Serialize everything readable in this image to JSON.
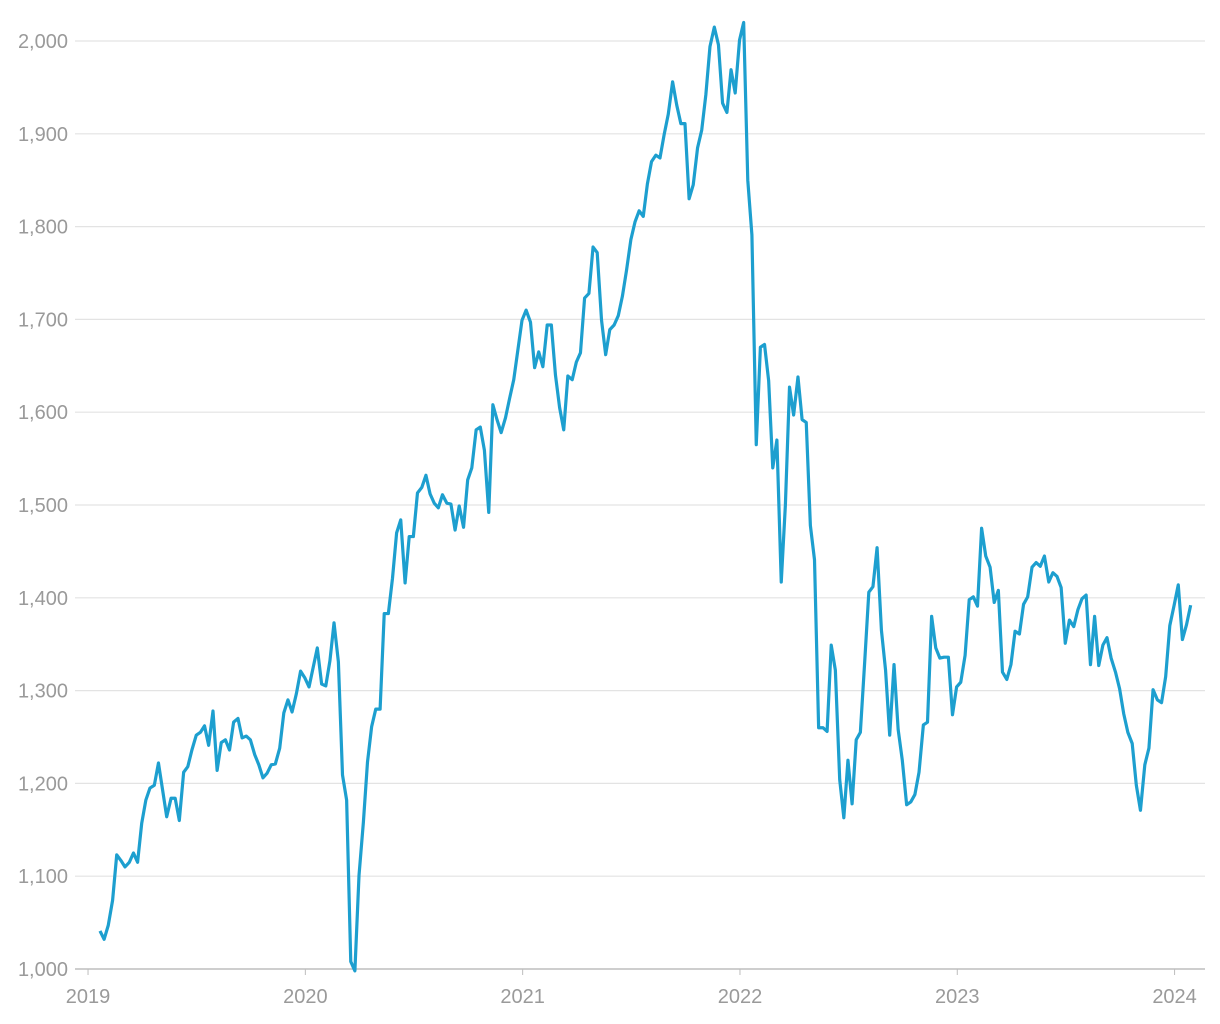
{
  "chart_data": {
    "type": "line",
    "color": "#1d9fcf",
    "grid": true,
    "xlim": [
      2018.94,
      2024.14
    ],
    "xticks": [
      2019,
      2020,
      2021,
      2022,
      2023,
      2024
    ],
    "ylim": [
      1000,
      2000
    ],
    "yticks": [
      {
        "value": 1000,
        "label": "1,000"
      },
      {
        "value": 1100,
        "label": "1,100"
      },
      {
        "value": 1200,
        "label": "1,200"
      },
      {
        "value": 1300,
        "label": "1,300"
      },
      {
        "value": 1400,
        "label": "1,400"
      },
      {
        "value": 1500,
        "label": "1,500"
      },
      {
        "value": 1600,
        "label": "1,600"
      },
      {
        "value": 1700,
        "label": "1,700"
      },
      {
        "value": 1800,
        "label": "1,800"
      },
      {
        "value": 1900,
        "label": "1,900"
      },
      {
        "value": 2000,
        "label": "2,000"
      }
    ],
    "x": [
      2019.055,
      2019.074,
      2019.093,
      2019.113,
      2019.132,
      2019.151,
      2019.17,
      2019.19,
      2019.209,
      2019.228,
      2019.247,
      2019.266,
      2019.285,
      2019.305,
      2019.324,
      2019.343,
      2019.362,
      2019.382,
      2019.401,
      2019.42,
      2019.44,
      2019.459,
      2019.478,
      2019.498,
      2019.517,
      2019.536,
      2019.555,
      2019.575,
      2019.594,
      2019.613,
      2019.632,
      2019.651,
      2019.67,
      2019.69,
      2019.709,
      2019.728,
      2019.747,
      2019.767,
      2019.786,
      2019.805,
      2019.824,
      2019.843,
      2019.862,
      2019.882,
      2019.901,
      2019.92,
      2019.939,
      2019.959,
      2019.978,
      2019.997,
      2020.017,
      2020.036,
      2020.055,
      2020.075,
      2020.094,
      2020.113,
      2020.132,
      2020.152,
      2020.171,
      2020.19,
      2020.209,
      2020.228,
      2020.247,
      2020.267,
      2020.286,
      2020.305,
      2020.324,
      2020.344,
      2020.363,
      2020.382,
      2020.401,
      2020.42,
      2020.439,
      2020.459,
      2020.478,
      2020.497,
      2020.516,
      2020.536,
      2020.555,
      2020.574,
      2020.593,
      2020.612,
      2020.631,
      2020.651,
      2020.67,
      2020.689,
      2020.708,
      2020.728,
      2020.747,
      2020.766,
      2020.786,
      2020.805,
      2020.824,
      2020.844,
      2020.863,
      2020.882,
      2020.901,
      2020.921,
      2020.94,
      2020.959,
      2020.978,
      2020.997,
      2021.016,
      2021.036,
      2021.055,
      2021.074,
      2021.093,
      2021.113,
      2021.132,
      2021.151,
      2021.17,
      2021.189,
      2021.208,
      2021.228,
      2021.247,
      2021.266,
      2021.285,
      2021.305,
      2021.324,
      2021.343,
      2021.363,
      2021.382,
      2021.401,
      2021.421,
      2021.44,
      2021.459,
      2021.478,
      2021.498,
      2021.517,
      2021.536,
      2021.555,
      2021.574,
      2021.593,
      2021.613,
      2021.632,
      2021.651,
      2021.67,
      2021.69,
      2021.709,
      2021.728,
      2021.747,
      2021.766,
      2021.785,
      2021.805,
      2021.824,
      2021.843,
      2021.862,
      2021.882,
      2021.901,
      2021.92,
      2021.94,
      2021.959,
      2021.978,
      2021.998,
      2022.017,
      2022.036,
      2022.055,
      2022.075,
      2022.094,
      2022.113,
      2022.132,
      2022.151,
      2022.17,
      2022.19,
      2022.209,
      2022.228,
      2022.247,
      2022.267,
      2022.286,
      2022.305,
      2022.324,
      2022.343,
      2022.362,
      2022.382,
      2022.401,
      2022.42,
      2022.439,
      2022.459,
      2022.478,
      2022.497,
      2022.516,
      2022.535,
      2022.554,
      2022.574,
      2022.593,
      2022.612,
      2022.631,
      2022.651,
      2022.67,
      2022.689,
      2022.709,
      2022.728,
      2022.747,
      2022.767,
      2022.786,
      2022.805,
      2022.824,
      2022.844,
      2022.863,
      2022.882,
      2022.901,
      2022.92,
      2022.939,
      2022.959,
      2022.978,
      2022.997,
      2023.016,
      2023.036,
      2023.055,
      2023.074,
      2023.093,
      2023.112,
      2023.131,
      2023.151,
      2023.17,
      2023.189,
      2023.208,
      2023.228,
      2023.247,
      2023.266,
      2023.286,
      2023.305,
      2023.324,
      2023.344,
      2023.363,
      2023.382,
      2023.401,
      2023.421,
      2023.44,
      2023.459,
      2023.478,
      2023.497,
      2023.516,
      2023.536,
      2023.555,
      2023.574,
      2023.593,
      2023.613,
      2023.632,
      2023.651,
      2023.67,
      2023.689,
      2023.708,
      2023.728,
      2023.747,
      2023.766,
      2023.785,
      2023.805,
      2023.824,
      2023.843,
      2023.863,
      2023.882,
      2023.901,
      2023.921,
      2023.94,
      2023.959,
      2023.978,
      2023.998,
      2024.017,
      2024.036,
      2024.055,
      2024.074
    ],
    "values": [
      1041,
      1032,
      1047,
      1074,
      1123,
      1117,
      1110,
      1115,
      1125,
      1115,
      1157,
      1182,
      1195,
      1198,
      1222,
      1193,
      1164,
      1184,
      1184,
      1160,
      1212,
      1218,
      1236,
      1252,
      1255,
      1262,
      1241,
      1278,
      1214,
      1244,
      1247,
      1236,
      1266,
      1270,
      1249,
      1251,
      1247,
      1231,
      1220,
      1206,
      1211,
      1220,
      1221,
      1238,
      1276,
      1290,
      1277,
      1297,
      1321,
      1314,
      1304,
      1325,
      1346,
      1307,
      1305,
      1332,
      1373,
      1331,
      1209,
      1182,
      1008,
      998,
      1101,
      1158,
      1223,
      1261,
      1280,
      1280,
      1383,
      1383,
      1421,
      1470,
      1484,
      1416,
      1466,
      1466,
      1513,
      1519,
      1532,
      1512,
      1502,
      1497,
      1511,
      1502,
      1501,
      1473,
      1499,
      1476,
      1527,
      1540,
      1581,
      1584,
      1559,
      1492,
      1608,
      1592,
      1578,
      1594,
      1615,
      1635,
      1667,
      1699,
      1710,
      1697,
      1648,
      1665,
      1649,
      1694,
      1694,
      1640,
      1605,
      1581,
      1639,
      1635,
      1654,
      1664,
      1723,
      1728,
      1778,
      1772,
      1699,
      1662,
      1689,
      1694,
      1704,
      1725,
      1753,
      1786,
      1805,
      1817,
      1811,
      1846,
      1870,
      1877,
      1874,
      1899,
      1921,
      1956,
      1931,
      1911,
      1911,
      1830,
      1845,
      1885,
      1904,
      1942,
      1994,
      2015,
      1996,
      1933,
      1923,
      1969,
      1944,
      2001,
      2020,
      1850,
      1791,
      1565,
      1670,
      1673,
      1634,
      1540,
      1570,
      1417,
      1500,
      1627,
      1597,
      1638,
      1592,
      1589,
      1478,
      1441,
      1260,
      1260,
      1256,
      1349,
      1322,
      1204,
      1163,
      1225,
      1178,
      1247,
      1255,
      1331,
      1406,
      1412,
      1454,
      1365,
      1322,
      1252,
      1328,
      1258,
      1225,
      1177,
      1180,
      1188,
      1212,
      1263,
      1266,
      1380,
      1346,
      1335,
      1336,
      1336,
      1274,
      1304,
      1309,
      1338,
      1398,
      1401,
      1391,
      1475,
      1445,
      1433,
      1395,
      1408,
      1320,
      1312,
      1328,
      1364,
      1361,
      1393,
      1401,
      1433,
      1438,
      1434,
      1445,
      1417,
      1427,
      1423,
      1411,
      1351,
      1376,
      1369,
      1387,
      1399,
      1403,
      1328,
      1380,
      1327,
      1349,
      1357,
      1335,
      1320,
      1302,
      1275,
      1255,
      1243,
      1198,
      1171,
      1220,
      1238,
      1301,
      1290,
      1287,
      1315,
      1370,
      1392,
      1414,
      1355,
      1371,
      1392
    ]
  }
}
